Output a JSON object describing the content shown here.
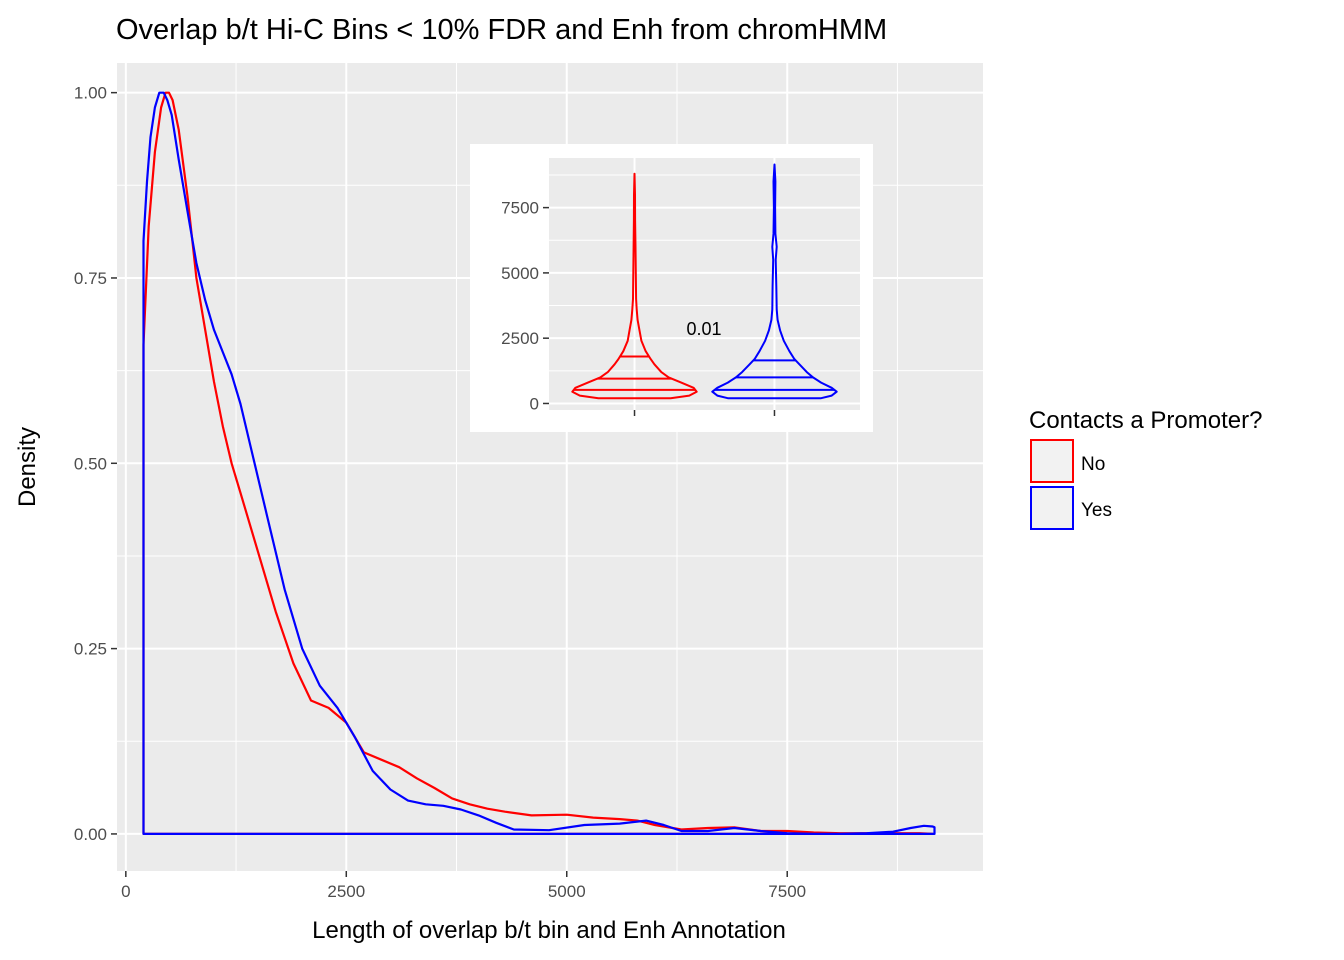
{
  "chart_data": [
    {
      "type": "density",
      "title": "Overlap b/t Hi-C Bins < 10% FDR and Enh from chromHMM",
      "xlabel": "Length of overlap b/t bin and Enh Annotation",
      "ylabel": "Density",
      "xlim": [
        -100,
        9720
      ],
      "ylim": [
        -0.05,
        1.04
      ],
      "x_ticks": [
        0,
        2500,
        5000,
        7500
      ],
      "x_tick_labels": [
        "0",
        "2500",
        "5000",
        "7500"
      ],
      "y_ticks": [
        0,
        0.25,
        0.5,
        0.75,
        1.0
      ],
      "y_tick_labels": [
        "0.00",
        "0.25",
        "0.50",
        "0.75",
        "1.00"
      ],
      "grid": true,
      "legend": {
        "title": "Contacts a Promoter?",
        "position": "right",
        "entries": [
          {
            "label": "No",
            "color": "#ff0000"
          },
          {
            "label": "Yes",
            "color": "#0000ff"
          }
        ]
      },
      "series": [
        {
          "name": "No",
          "color": "#ff0000",
          "x": [
            200,
            260,
            330,
            400,
            450,
            490,
            530,
            600,
            700,
            800,
            900,
            1000,
            1100,
            1200,
            1300,
            1500,
            1700,
            1900,
            2100,
            2300,
            2500,
            2700,
            2900,
            3100,
            3300,
            3500,
            3700,
            3900,
            4100,
            4300,
            4600,
            5000,
            5300,
            5600,
            5800,
            6000,
            6300,
            6600,
            6900,
            7200,
            7500,
            7800,
            8100,
            8400,
            8700,
            9000,
            9150
          ],
          "y": [
            0.66,
            0.82,
            0.92,
            0.98,
            1.0,
            1.0,
            0.99,
            0.95,
            0.86,
            0.75,
            0.68,
            0.61,
            0.55,
            0.5,
            0.46,
            0.38,
            0.3,
            0.23,
            0.18,
            0.17,
            0.15,
            0.11,
            0.1,
            0.09,
            0.075,
            0.062,
            0.048,
            0.04,
            0.034,
            0.03,
            0.025,
            0.026,
            0.022,
            0.02,
            0.018,
            0.012,
            0.006,
            0.008,
            0.009,
            0.004,
            0.004,
            0.002,
            0.001,
            0.001,
            0.001,
            0.001,
            0.0
          ]
        },
        {
          "name": "Yes",
          "color": "#0000ff",
          "x": [
            200,
            240,
            280,
            330,
            380,
            430,
            470,
            520,
            600,
            700,
            800,
            900,
            1000,
            1100,
            1200,
            1300,
            1400,
            1600,
            1800,
            2000,
            2200,
            2400,
            2600,
            2800,
            3000,
            3200,
            3400,
            3600,
            3800,
            4000,
            4200,
            4400,
            4800,
            5200,
            5600,
            5900,
            6100,
            6300,
            6600,
            6900,
            7200,
            7500,
            7800,
            8100,
            8400,
            8700,
            8900,
            9050,
            9150,
            9170
          ],
          "y": [
            0.8,
            0.88,
            0.94,
            0.98,
            1.0,
            1.0,
            0.99,
            0.97,
            0.91,
            0.84,
            0.77,
            0.72,
            0.68,
            0.65,
            0.62,
            0.58,
            0.53,
            0.43,
            0.33,
            0.25,
            0.2,
            0.17,
            0.13,
            0.085,
            0.06,
            0.045,
            0.04,
            0.038,
            0.033,
            0.025,
            0.015,
            0.006,
            0.005,
            0.012,
            0.014,
            0.018,
            0.012,
            0.004,
            0.004,
            0.008,
            0.004,
            0.001,
            0.0,
            0.0,
            0.001,
            0.003,
            0.008,
            0.011,
            0.01,
            0.009
          ]
        }
      ]
    },
    {
      "type": "violin",
      "title": "",
      "ylim": [
        -250,
        9400
      ],
      "y_ticks": [
        0,
        2500,
        5000,
        7500
      ],
      "y_tick_labels": [
        "0",
        "2500",
        "5000",
        "7500"
      ],
      "grid": true,
      "annotation": "0.01",
      "groups": [
        {
          "name": "No",
          "color": "#ff0000",
          "ymin": 200,
          "ymax": 8800,
          "quantiles": [
            520,
            950,
            1800
          ],
          "profile": [
            [
              200,
              0.58
            ],
            [
              300,
              0.88
            ],
            [
              450,
              1.0
            ],
            [
              600,
              0.95
            ],
            [
              800,
              0.75
            ],
            [
              1000,
              0.55
            ],
            [
              1200,
              0.43
            ],
            [
              1500,
              0.32
            ],
            [
              1700,
              0.26
            ],
            [
              2000,
              0.18
            ],
            [
              2400,
              0.11
            ],
            [
              2800,
              0.08
            ],
            [
              3200,
              0.05
            ],
            [
              3600,
              0.035
            ],
            [
              4000,
              0.025
            ],
            [
              5000,
              0.02
            ],
            [
              6000,
              0.015
            ],
            [
              7000,
              0.01
            ],
            [
              8000,
              0.008
            ],
            [
              8800,
              0.0
            ]
          ]
        },
        {
          "name": "Yes",
          "color": "#0000ff",
          "ymin": 200,
          "ymax": 9150,
          "quantiles": [
            520,
            1000,
            1650
          ],
          "profile": [
            [
              200,
              0.75
            ],
            [
              300,
              0.92
            ],
            [
              450,
              1.0
            ],
            [
              600,
              0.92
            ],
            [
              800,
              0.75
            ],
            [
              1000,
              0.62
            ],
            [
              1200,
              0.52
            ],
            [
              1500,
              0.4
            ],
            [
              1700,
              0.32
            ],
            [
              2000,
              0.24
            ],
            [
              2400,
              0.15
            ],
            [
              2800,
              0.09
            ],
            [
              3200,
              0.05
            ],
            [
              3600,
              0.035
            ],
            [
              4500,
              0.03
            ],
            [
              5500,
              0.02
            ],
            [
              6000,
              0.035
            ],
            [
              6500,
              0.015
            ],
            [
              7500,
              0.01
            ],
            [
              8500,
              0.015
            ],
            [
              9150,
              0.0
            ]
          ]
        }
      ]
    }
  ]
}
